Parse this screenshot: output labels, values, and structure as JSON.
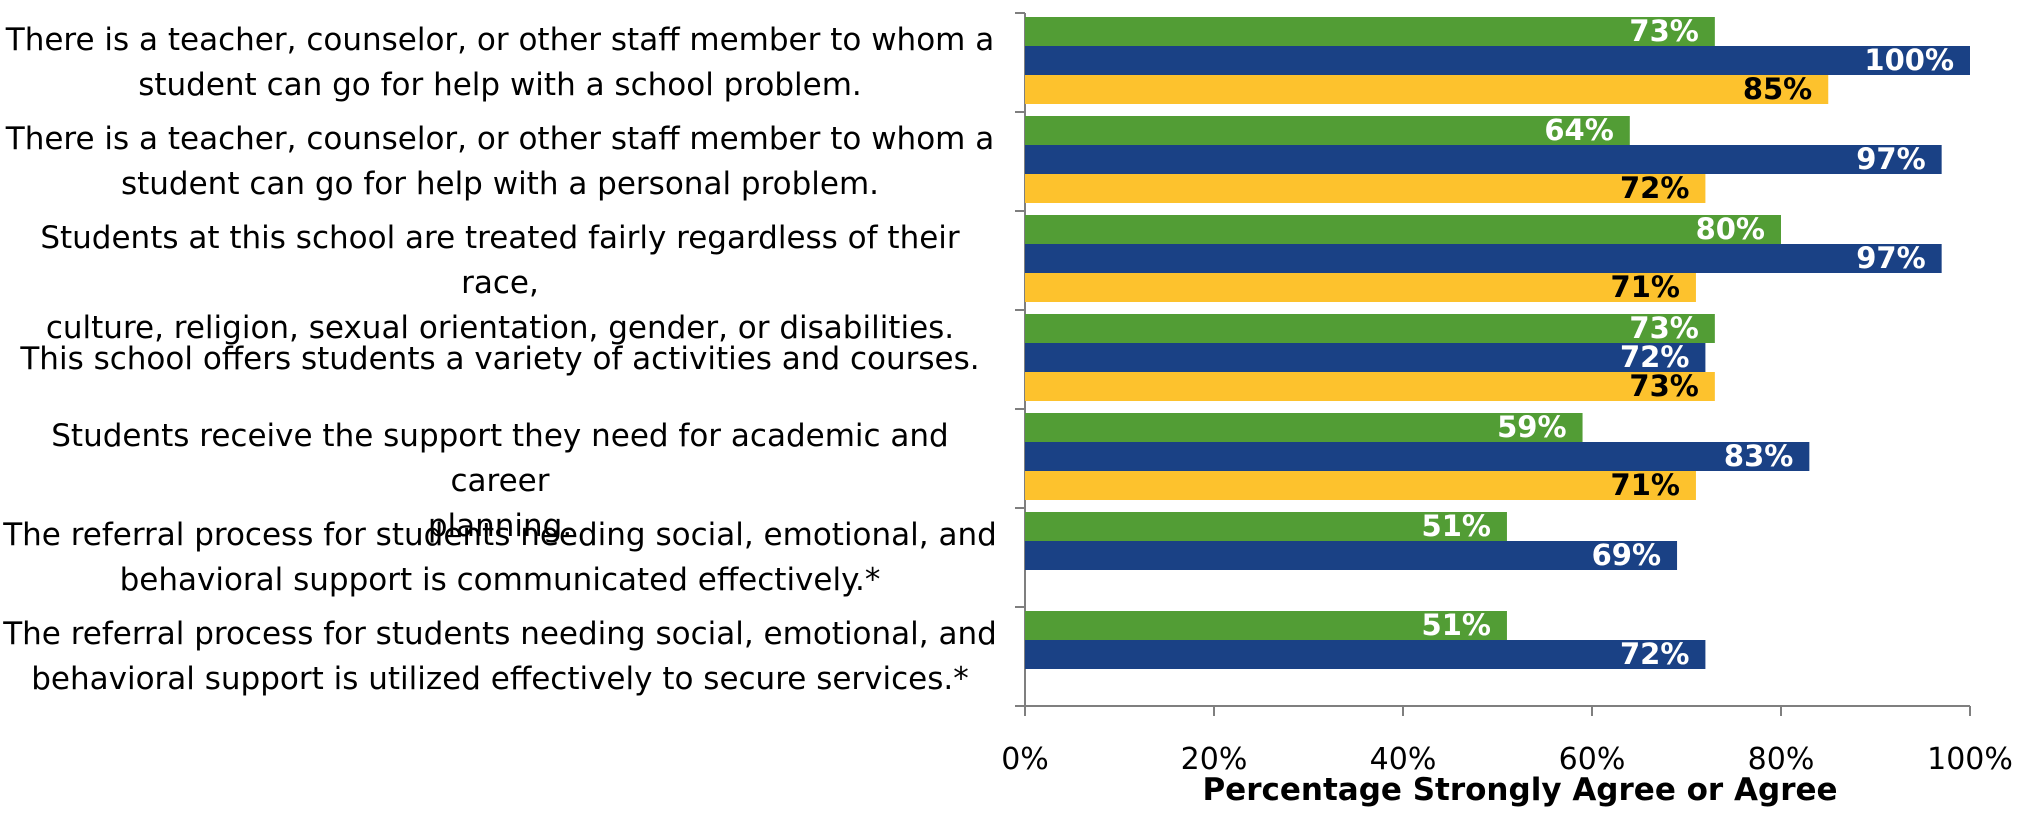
{
  "chart_data": {
    "type": "bar",
    "orientation": "horizontal",
    "categories": [
      "There is a teacher, counselor, or other staff member to whom a student can go for help with a school problem.",
      "There is a teacher, counselor, or other staff member to whom a student can go for help with a personal problem.",
      "Students at this school are treated fairly regardless of their race, culture, religion, sexual orientation, gender, or disabilities.",
      "This school offers students a variety of activities and courses.",
      "Students receive the support they need for academic and career planning.",
      "The referral process for students needing social, emotional, and behavioral support is communicated effectively.*",
      "The referral process for students needing social, emotional, and behavioral support is utilized effectively to secure services.*"
    ],
    "series": [
      {
        "color": "#529d35",
        "label_color": "#ffffff",
        "values": [
          73,
          64,
          80,
          73,
          59,
          51,
          51
        ]
      },
      {
        "color": "#1a4185",
        "label_color": "#ffffff",
        "values": [
          100,
          97,
          97,
          72,
          83,
          69,
          72
        ]
      },
      {
        "color": "#fdc22d",
        "label_color": "#000000",
        "values": [
          85,
          72,
          71,
          73,
          71,
          null,
          null
        ]
      }
    ],
    "data_labels": [
      [
        "73%",
        "64%",
        "80%",
        "73%",
        "59%",
        "51%",
        "51%"
      ],
      [
        "100%",
        "97%",
        "97%",
        "72%",
        "83%",
        "69%",
        "72%"
      ],
      [
        "85%",
        "72%",
        "71%",
        "73%",
        "71%",
        "",
        ""
      ]
    ],
    "xlim": [
      0,
      100
    ],
    "xticks": [
      0,
      20,
      40,
      60,
      80,
      100
    ],
    "xtick_labels": [
      "0%",
      "20%",
      "40%",
      "60%",
      "80%",
      "100%"
    ],
    "xlabel": "Percentage Strongly Agree or Agree",
    "title": "",
    "grid": false,
    "legend": "none"
  },
  "category_lines": [
    [
      "There is a teacher, counselor, or other staff member to whom a",
      "student can go for help with a school problem."
    ],
    [
      "There is a teacher, counselor, or other staff member to whom a",
      "student can go for help with a personal problem."
    ],
    [
      "Students at this school are treated fairly regardless of their race,",
      "culture, religion, sexual orientation, gender, or disabilities."
    ],
    [
      "This school offers students a variety of activities and courses."
    ],
    [
      "Students receive the support they need for academic and career",
      "planning."
    ],
    [
      "The referral process for students needing social, emotional, and",
      "behavioral support is communicated effectively.*"
    ],
    [
      "The referral process for students needing social, emotional, and",
      "behavioral support is utilized effectively to secure services.*"
    ]
  ]
}
